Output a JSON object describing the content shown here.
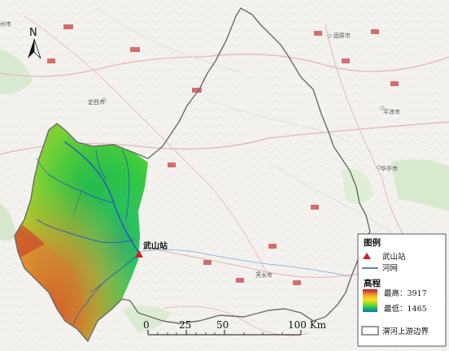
{
  "north_label": "N",
  "station": {
    "name": "武山站"
  },
  "cities": [
    {
      "name": "固原市"
    },
    {
      "name": "定西市"
    },
    {
      "name": "平凉市"
    },
    {
      "name": "华亭市"
    },
    {
      "name": "天水市"
    },
    {
      "name": "州市"
    }
  ],
  "scale": {
    "ticks": [
      "0",
      "25",
      "50",
      "100 Km"
    ]
  },
  "legend": {
    "title": "图例",
    "station": "武山站",
    "river": "河网",
    "elevation_title": "高程",
    "elevation_max": "最高：3917",
    "elevation_min": "最低：1465",
    "boundary": "渭河上游边界",
    "elevation_max_value": 3917,
    "elevation_min_value": 1465
  },
  "colors": {
    "boundary": "#666666",
    "river": "#2a5fb0",
    "station": "#d0202a",
    "elev_high": "#c8102e",
    "elev_mid_high": "#f0a030",
    "elev_mid": "#f7e020",
    "elev_mid_low": "#8fd82a",
    "elev_low": "#1ec05a",
    "elev_lowest": "#1070c8"
  }
}
